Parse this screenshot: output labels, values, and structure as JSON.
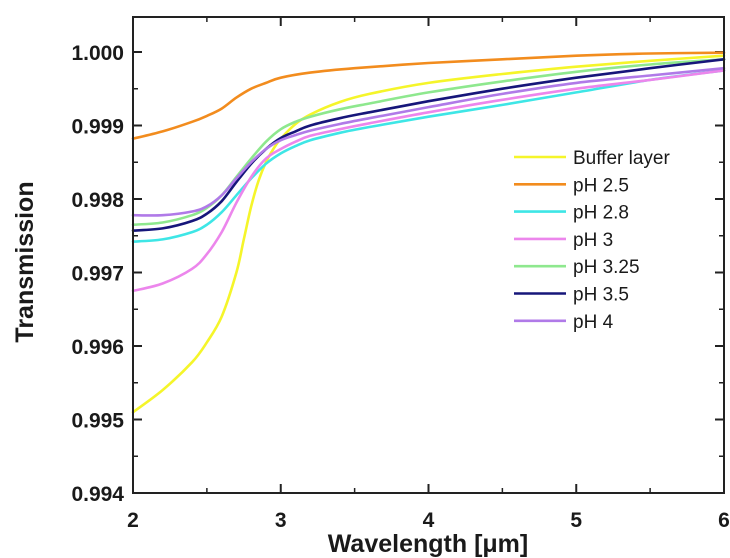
{
  "chart_data": {
    "type": "line",
    "xlabel": "Wavelength [μm]",
    "ylabel": "Transmission",
    "xlim": [
      2,
      6
    ],
    "ylim": [
      0.994,
      1.0005
    ],
    "xticks": [
      2,
      3,
      4,
      5,
      6
    ],
    "xtick_labels": [
      "2",
      "3",
      "4",
      "5",
      "6"
    ],
    "yticks": [
      0.994,
      0.995,
      0.996,
      0.997,
      0.998,
      0.999,
      1.0
    ],
    "ytick_labels": [
      "0.994",
      "0.995",
      "0.996",
      "0.997",
      "0.998",
      "0.999",
      "1.000"
    ],
    "grid": false,
    "legend_position": "right",
    "series": [
      {
        "name": "Buffer layer",
        "color": "#f5f52a",
        "x": [
          2.0,
          2.2,
          2.4,
          2.5,
          2.6,
          2.7,
          2.75,
          2.8,
          2.85,
          2.9,
          2.95,
          3.0,
          3.1,
          3.2,
          3.4,
          3.6,
          4.0,
          4.5,
          5.0,
          5.5,
          6.0
        ],
        "y": [
          0.9951,
          0.9954,
          0.99578,
          0.99605,
          0.9964,
          0.997,
          0.99745,
          0.9979,
          0.99825,
          0.9985,
          0.99868,
          0.99882,
          0.99902,
          0.99915,
          0.99932,
          0.99943,
          0.99958,
          0.9997,
          0.9998,
          0.99988,
          0.99995
        ]
      },
      {
        "name": "pH 2.5",
        "color": "#f28c1e",
        "x": [
          2.0,
          2.2,
          2.4,
          2.5,
          2.6,
          2.7,
          2.8,
          2.9,
          3.0,
          3.2,
          3.5,
          4.0,
          4.5,
          5.0,
          5.5,
          6.0
        ],
        "y": [
          0.99882,
          0.99892,
          0.99905,
          0.99913,
          0.99923,
          0.99938,
          0.9995,
          0.99958,
          0.99965,
          0.99972,
          0.99978,
          0.99985,
          0.9999,
          0.99995,
          0.99998,
          0.99999
        ]
      },
      {
        "name": "pH 2.8",
        "color": "#3ee6e6",
        "x": [
          2.0,
          2.2,
          2.4,
          2.5,
          2.6,
          2.7,
          2.8,
          2.9,
          3.0,
          3.1,
          3.2,
          3.4,
          3.6,
          4.0,
          4.5,
          5.0,
          5.5,
          6.0
        ],
        "y": [
          0.99742,
          0.99745,
          0.99755,
          0.99765,
          0.99782,
          0.99805,
          0.99828,
          0.99848,
          0.99862,
          0.99872,
          0.9988,
          0.9989,
          0.99898,
          0.99912,
          0.99928,
          0.99945,
          0.99962,
          0.99975
        ]
      },
      {
        "name": "pH 3",
        "color": "#ec86ec",
        "x": [
          2.0,
          2.2,
          2.4,
          2.5,
          2.6,
          2.7,
          2.8,
          2.9,
          3.0,
          3.1,
          3.2,
          3.4,
          3.6,
          4.0,
          4.5,
          5.0,
          5.5,
          6.0
        ],
        "y": [
          0.99675,
          0.99685,
          0.99705,
          0.99725,
          0.99755,
          0.99795,
          0.9983,
          0.99855,
          0.99868,
          0.99878,
          0.99886,
          0.99895,
          0.99903,
          0.99918,
          0.99935,
          0.9995,
          0.99962,
          0.99975
        ]
      },
      {
        "name": "pH 3.25",
        "color": "#8ee88e",
        "x": [
          2.0,
          2.2,
          2.4,
          2.5,
          2.6,
          2.7,
          2.8,
          2.9,
          3.0,
          3.1,
          3.2,
          3.4,
          3.6,
          4.0,
          4.5,
          5.0,
          5.5,
          6.0
        ],
        "y": [
          0.99765,
          0.99768,
          0.99778,
          0.99788,
          0.99805,
          0.9983,
          0.99855,
          0.99878,
          0.99895,
          0.99905,
          0.99912,
          0.99922,
          0.9993,
          0.99945,
          0.9996,
          0.99973,
          0.99983,
          0.9999
        ]
      },
      {
        "name": "pH 3.5",
        "color": "#16167a",
        "x": [
          2.0,
          2.2,
          2.4,
          2.5,
          2.6,
          2.7,
          2.8,
          2.9,
          3.0,
          3.1,
          3.2,
          3.4,
          3.6,
          4.0,
          4.5,
          5.0,
          5.5,
          6.0
        ],
        "y": [
          0.99757,
          0.9976,
          0.9977,
          0.9978,
          0.99797,
          0.99823,
          0.99848,
          0.99868,
          0.99883,
          0.99892,
          0.999,
          0.9991,
          0.99918,
          0.99933,
          0.9995,
          0.99965,
          0.99978,
          0.9999
        ]
      },
      {
        "name": "pH 4",
        "color": "#b07ae8",
        "x": [
          2.0,
          2.2,
          2.4,
          2.5,
          2.6,
          2.7,
          2.8,
          2.9,
          3.0,
          3.1,
          3.2,
          3.4,
          3.6,
          4.0,
          4.5,
          5.0,
          5.5,
          6.0
        ],
        "y": [
          0.99778,
          0.99778,
          0.99783,
          0.9979,
          0.99805,
          0.99828,
          0.9985,
          0.99868,
          0.9988,
          0.99887,
          0.99893,
          0.99902,
          0.9991,
          0.99925,
          0.99943,
          0.99958,
          0.99968,
          0.99978
        ]
      }
    ]
  }
}
